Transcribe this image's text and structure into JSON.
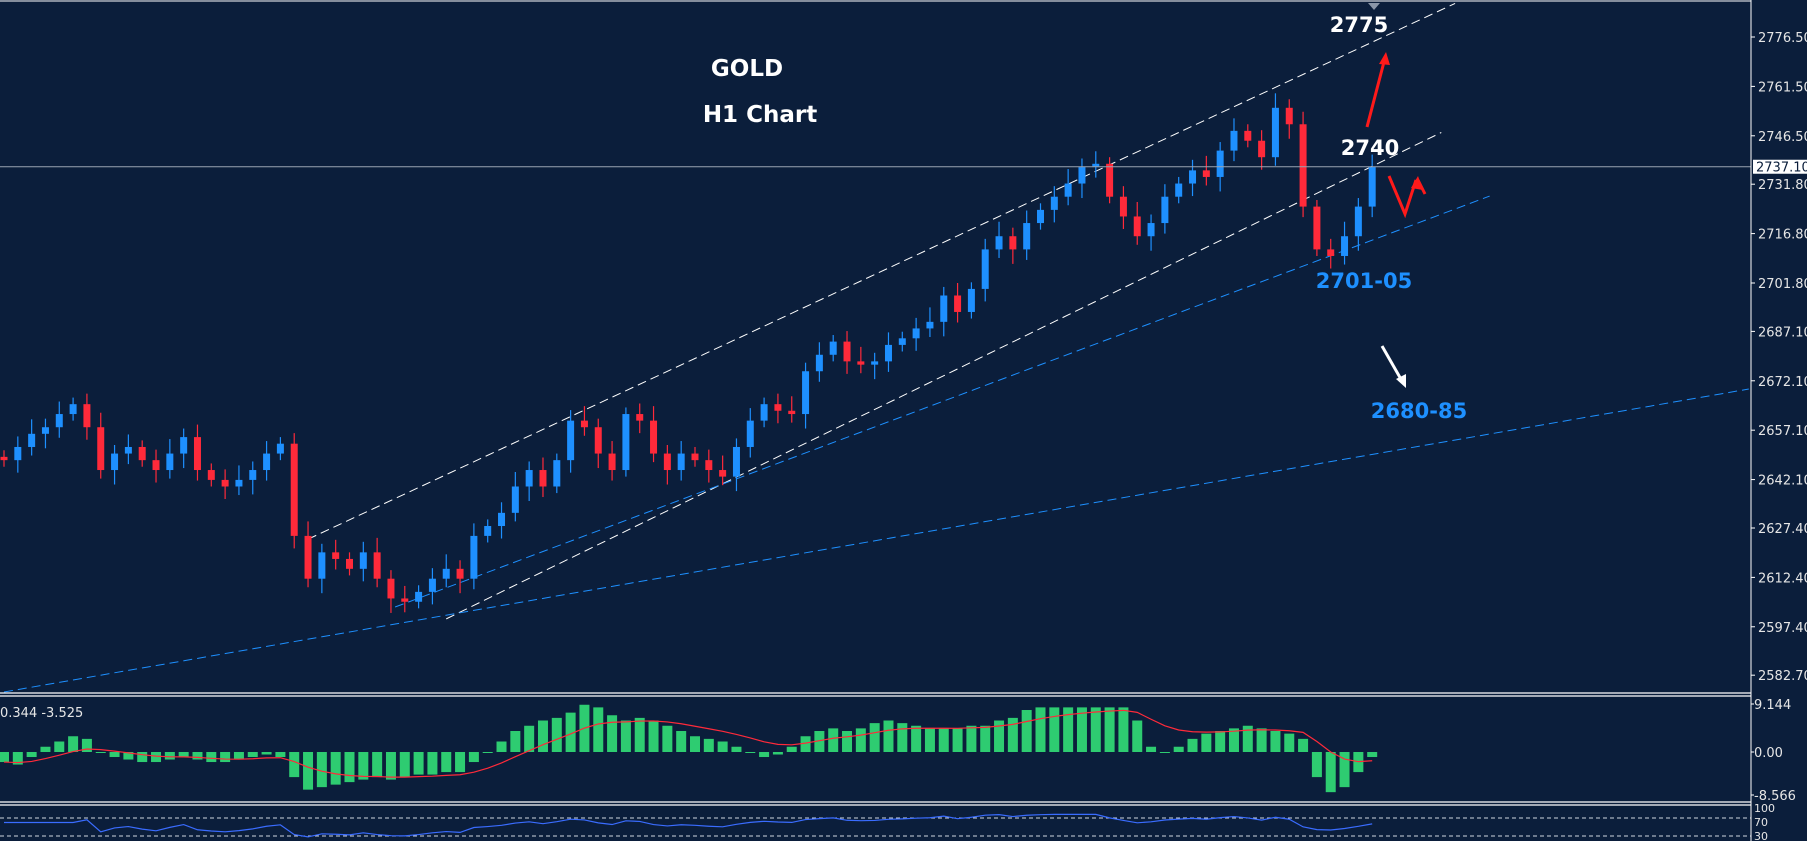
{
  "colors": {
    "background": "#0b1e3b",
    "bull_candle": "#1e90ff",
    "bear_candle": "#ff2a3a",
    "macd_histogram": "#2ecc71",
    "macd_signal": "#ff2a3a",
    "rsi_line": "#3a6cff",
    "channel_line": "#ffffff",
    "support_line": "#1e90ff",
    "arrow_bull": "#ff1a1a",
    "arrow_bear": "#ffffff"
  },
  "annotations": {
    "title": "GOLD",
    "subtitle": "H1 Chart",
    "target_high": "2775",
    "target_mid": "2740",
    "support_1": "2701-05",
    "support_2": "2680-85"
  },
  "chart_data": [
    {
      "type": "candlestick",
      "symbol": "GOLD",
      "timeframe": "H1",
      "ylim": [
        2577.5,
        2788
      ],
      "yticks": [
        "2776.50",
        "2761.50",
        "2746.50",
        "2731.80",
        "2716.80",
        "2701.80",
        "2687.10",
        "2672.10",
        "2657.10",
        "2642.10",
        "2627.40",
        "2612.40",
        "2597.40",
        "2582.70"
      ],
      "current_price": "2737.10",
      "grid": false,
      "close": [
        2648,
        2652,
        2656,
        2658,
        2662,
        2665,
        2658,
        2645,
        2650,
        2652,
        2648,
        2645,
        2650,
        2655,
        2645,
        2642,
        2640,
        2642,
        2645,
        2650,
        2653,
        2625,
        2612,
        2620,
        2618,
        2615,
        2620,
        2612,
        2606,
        2605,
        2608,
        2612,
        2615,
        2612,
        2625,
        2628,
        2632,
        2640,
        2645,
        2640,
        2648,
        2660,
        2658,
        2650,
        2645,
        2662,
        2660,
        2650,
        2645,
        2650,
        2648,
        2645,
        2643,
        2652,
        2660,
        2665,
        2663,
        2662,
        2675,
        2680,
        2684,
        2678,
        2677,
        2678,
        2683,
        2685,
        2688,
        2690,
        2698,
        2693,
        2700,
        2712,
        2716,
        2712,
        2720,
        2724,
        2728,
        2732,
        2737,
        2738,
        2728,
        2722,
        2716,
        2720,
        2728,
        2732,
        2736,
        2734,
        2742,
        2748,
        2745,
        2740,
        2755,
        2750,
        2725,
        2712,
        2710,
        2716,
        2725,
        2737
      ],
      "trendlines": [
        {
          "style": "white-dashed",
          "from": [
            22,
            2624.0
          ],
          "to": [
            105,
            2786.7
          ]
        },
        {
          "style": "white-dashed",
          "from": [
            32,
            2599.8
          ],
          "to": [
            104,
            2747.5
          ]
        },
        {
          "style": "blue-dashed",
          "from": [
            28.3,
            2603.4
          ],
          "to": [
            107.5,
            2728.2
          ]
        },
        {
          "style": "blue-dashed",
          "from": [
            0,
            2577.6
          ],
          "to": [
            126.25,
            2669.6
          ]
        }
      ]
    },
    {
      "type": "bar",
      "indicator": "MACD",
      "readout": "0.344 -3.525",
      "ylim": [
        -8.566,
        9.144
      ],
      "yticks": [
        "9.144",
        "0.00",
        "-8.566"
      ],
      "histogram": [
        -2,
        -2.5,
        -1,
        1,
        2,
        3,
        2.5,
        0,
        -1,
        -1.5,
        -2,
        -2,
        -1.5,
        -1,
        -1.5,
        -2,
        -2,
        -1.5,
        -1,
        -0.5,
        -1,
        -5,
        -7.5,
        -7,
        -6.5,
        -6,
        -5.5,
        -5,
        -5.5,
        -5,
        -4.5,
        -4.5,
        -4,
        -4,
        -2,
        0,
        2,
        4,
        5,
        6,
        6.5,
        7.5,
        9,
        8.5,
        7,
        6,
        6.5,
        6,
        5,
        4,
        3,
        2.5,
        2,
        1,
        0,
        -1,
        -0.5,
        1,
        3,
        4,
        4.5,
        4,
        4.5,
        5.5,
        6,
        5.5,
        5,
        4.5,
        4.5,
        4.5,
        5,
        5,
        6,
        6.5,
        8,
        8.5,
        8.5,
        8.5,
        8.5,
        8.5,
        8.5,
        8.5,
        6,
        1,
        0,
        1,
        2.5,
        3.5,
        4,
        4.5,
        5,
        4.5,
        4,
        3.5,
        2.5,
        -5,
        -8,
        -7,
        -4,
        -1
      ]
    },
    {
      "type": "line",
      "indicator": "RSI",
      "yticks": [
        "100",
        "70",
        "30"
      ],
      "levels": [
        70,
        30
      ]
    }
  ]
}
